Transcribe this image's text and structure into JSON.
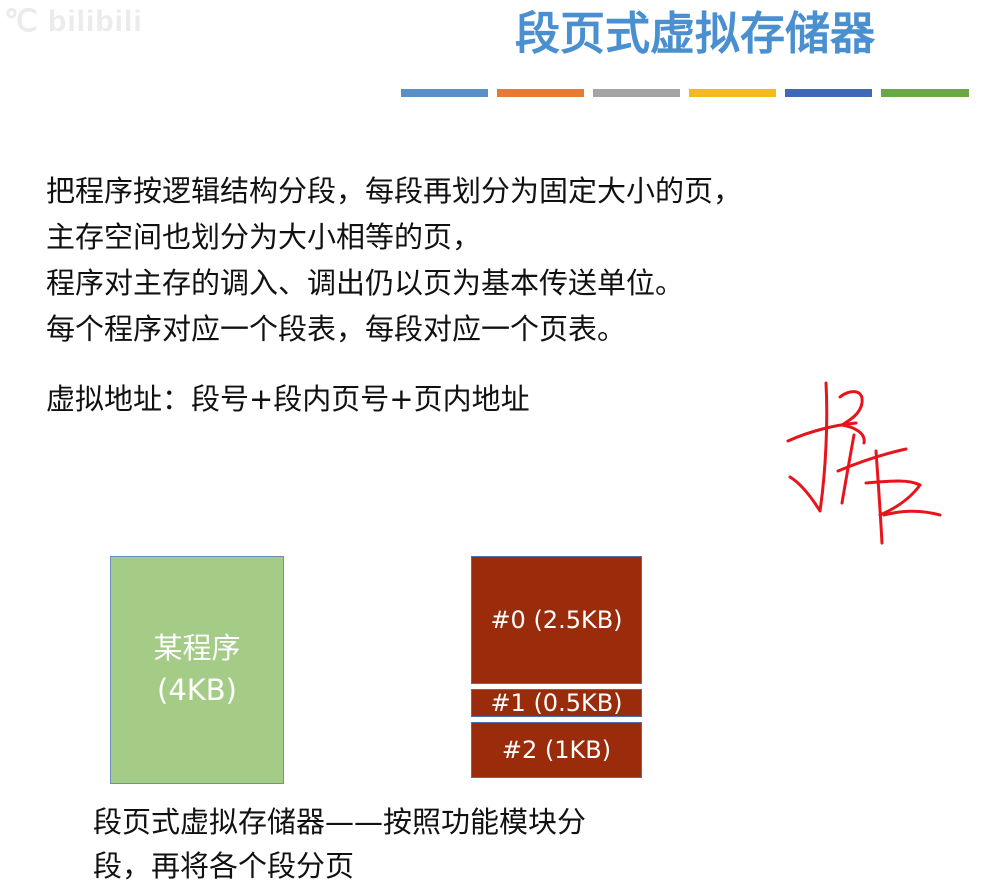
{
  "watermark": "℃ bilibili",
  "title": "段页式虚拟存储器",
  "accent_colors": [
    "#5b8fc7",
    "#e57b35",
    "#a5a5a5",
    "#f2bb1b",
    "#4068b5",
    "#6aa846"
  ],
  "body_lines": [
    "把程序按逻辑结构分段，每段再划分为固定大小的页，",
    "主存空间也划分为大小相等的页，",
    "程序对主存的调入、调出仍以页为基本传送单位。",
    "每个程序对应一个段表，每段对应一个页表。"
  ],
  "address_line": "虚拟地址：段号+段内页号+页内地址",
  "program": {
    "name": "某程序",
    "size": "(4KB)",
    "color": "#a5cc86"
  },
  "segments": [
    {
      "label": "#0 (2.5KB)"
    },
    {
      "label": "#1 (0.5KB)"
    },
    {
      "label": "#2 (1KB)"
    }
  ],
  "segment_color": "#9b2c0b",
  "annotation_color": "#e8141c",
  "caption_lines": [
    "段页式虚拟存储器——按照功能模块分",
    "段，再将各个段分页"
  ]
}
